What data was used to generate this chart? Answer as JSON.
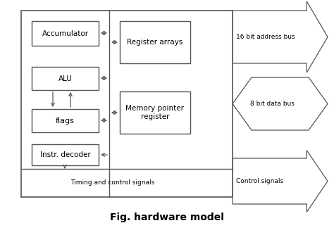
{
  "title": "Fig. hardware model",
  "bg_color": "#ffffff",
  "box_color": "#ffffff",
  "border_color": "#555555",
  "text_color": "#000000",
  "accumulator_label": "Accumulator",
  "alu_label": "ALU",
  "flags_label": "flags",
  "instr_decoder_label": "Instr. decoder",
  "reg_arrays_label": "Register arrays",
  "mem_ptr_label": "Memory pointer\nregister",
  "timing_label": "Timing and control signals",
  "control_signals_label": "Control signals",
  "addr_bus_label": "16 bit address bus",
  "data_bus_label": "8 bit data bus"
}
